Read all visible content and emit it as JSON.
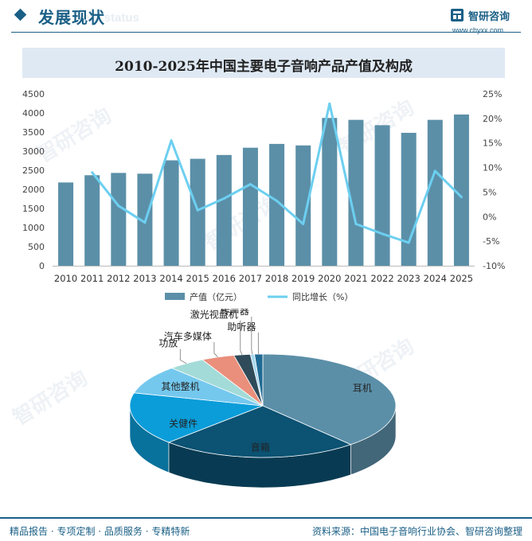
{
  "header": {
    "title": "发展现状",
    "subtitle": "ent status",
    "logo_name": "智研咨询",
    "logo_url": "www.chyxx.com"
  },
  "watermark": "智研咨询",
  "chart_data": [
    {
      "type": "bar",
      "title": "2010-2025年中国主要电子音响产品产值及构成",
      "categories": [
        "2010",
        "2011",
        "2012",
        "2013",
        "2014",
        "2015",
        "2016",
        "2017",
        "2018",
        "2019",
        "2020",
        "2021",
        "2022",
        "2023",
        "2024",
        "2025"
      ],
      "series": [
        {
          "name": "产值（亿元）",
          "type": "bar",
          "axis": "left",
          "color": "#5b8fa8",
          "values": [
            2180,
            2370,
            2430,
            2410,
            2760,
            2800,
            2900,
            3090,
            3190,
            3150,
            3870,
            3820,
            3680,
            3480,
            3820,
            3960
          ]
        },
        {
          "name": "同比增长（%）",
          "type": "line",
          "axis": "right",
          "color": "#6ccff0",
          "values": [
            null,
            9,
            2.2,
            -1.2,
            15.5,
            1.3,
            3.7,
            6.6,
            3.2,
            -1.5,
            23,
            -1.5,
            -3.5,
            -5.3,
            9.3,
            4.0
          ]
        }
      ],
      "y_left": {
        "range": [
          0,
          4500
        ],
        "ticks": [
          "0",
          "500",
          "1000",
          "1500",
          "2000",
          "2500",
          "3000",
          "3500",
          "4000",
          "4500"
        ]
      },
      "y_right": {
        "range": [
          -10,
          25
        ],
        "ticks": [
          "-10%",
          "-5%",
          "0%",
          "5%",
          "10%",
          "15%",
          "20%",
          "25%"
        ]
      },
      "grid": false,
      "legend_position": "bottom"
    },
    {
      "type": "pie",
      "style": "3d",
      "slices": [
        {
          "label": "耳机",
          "value": 38.5,
          "color": "#5b8fa8"
        },
        {
          "label": "音箱",
          "value": 24.0,
          "color": "#0b5273"
        },
        {
          "label": "关健件",
          "value": 16.5,
          "color": "#0b9dd9"
        },
        {
          "label": "其他整机",
          "value": 9.0,
          "color": "#74c8ee"
        },
        {
          "label": "功放",
          "value": 4.5,
          "color": "#a3dbd8"
        },
        {
          "label": "汽车多媒体",
          "value": 4.0,
          "color": "#ea8f7c"
        },
        {
          "label": "激光视盘机",
          "value": 2.0,
          "color": "#2f4b5a"
        },
        {
          "label": "传声器",
          "value": 0.5,
          "color": "#a8d8ef"
        },
        {
          "label": "助听器",
          "value": 1.0,
          "color": "#1f6a94"
        }
      ]
    }
  ],
  "footer": {
    "left": "精品报告 · 专项定制 · 品质服务 · 专精特新",
    "right": "资料来源：中国电子音响行业协会、智研咨询整理"
  }
}
